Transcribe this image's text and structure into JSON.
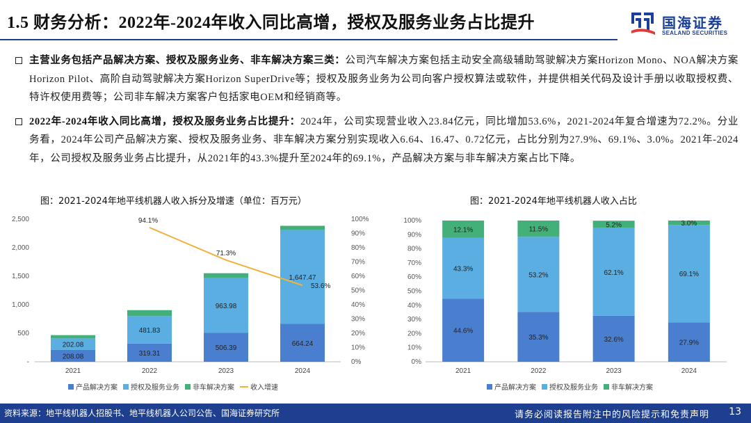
{
  "header": {
    "title": "1.5 财务分析：2022年-2024年收入同比高增，授权及服务业务占比提升",
    "logo_cn": "国海证券",
    "logo_en": "SEALAND SECURITIES"
  },
  "bullets": [
    {
      "lead": "主营业务包括产品解决方案、授权及服务业务、非车解决方案三类：",
      "body": "公司汽车解决方案包括主动安全高级辅助驾驶解决方案Horizon Mono、NOA解决方案Horizon Pilot、高阶自动驾驶解决方案Horizon SuperDrive等；授权及服务业务为公司向客户授权算法或软件，并提供相关代码及设计手册以收取授权费、特许权使用费等；公司非车解决方案客户包括家电OEM和经销商等。"
    },
    {
      "lead": "2022年-2024年收入同比高增，授权及服务业务占比提升：",
      "body": "2024年，公司实现营业收入23.84亿元，同比增加53.6%，2021-2024年复合增速为72.2%。分业务看，2024年公司产品解决方案、授权及服务业务、非车解决方案分别实现收入6.64、16.47、0.72亿元，占比分别为27.9%、69.1%、3.0%。2021年-2024年，公司授权及服务业务占比提升，从2021年的43.3%提升至2024年的69.1%，产品解决方案与非车解决方案占比下降。"
    }
  ],
  "chart_left_title": "图：2021-2024年地平线机器人收入拆分及增速（单位：百万元）",
  "chart_right_title": "图：2021-2024年地平线机器人收入占比",
  "colors": {
    "product": "#4a7fd0",
    "license": "#5aaee2",
    "noncar": "#43b07a",
    "growth": "#f0b23a",
    "brand": "#1e3f8f"
  },
  "chart_data": [
    {
      "type": "bar",
      "stacked": true,
      "categories": [
        "2021",
        "2022",
        "2023",
        "2024"
      ],
      "series": [
        {
          "name": "产品解决方案",
          "values": [
            208.08,
            319.31,
            506.39,
            664.24
          ],
          "labels": [
            "208.08",
            "319.31",
            "506.39",
            "664.24"
          ]
        },
        {
          "name": "授权及服务业务",
          "values": [
            202.08,
            481.83,
            963.98,
            1647.47
          ],
          "labels": [
            "202.08",
            "481.83",
            "963.98",
            "1,647.47"
          ]
        },
        {
          "name": "非车解决方案",
          "values": [
            57,
            104,
            82,
            72
          ],
          "labels": [
            "",
            "",
            "",
            ""
          ]
        }
      ],
      "line": {
        "name": "收入增速",
        "axis": "right",
        "values": [
          null,
          94.1,
          71.3,
          53.6
        ],
        "labels": [
          "",
          "94.1%",
          "71.3%",
          "53.6%"
        ]
      },
      "ylim": [
        0,
        2500
      ],
      "yticks": [
        "-",
        "500",
        "1,000",
        "1,500",
        "2,000",
        "2,500"
      ],
      "y2lim": [
        0,
        100
      ],
      "y2ticks": [
        "0%",
        "10%",
        "20%",
        "30%",
        "40%",
        "50%",
        "60%",
        "70%",
        "80%",
        "90%",
        "100%"
      ],
      "legend_position": "bottom",
      "legend": [
        "产品解决方案",
        "授权及服务业务",
        "非车解决方案",
        "收入增速"
      ]
    },
    {
      "type": "bar",
      "stacked": true,
      "percent": true,
      "categories": [
        "2021",
        "2022",
        "2023",
        "2024"
      ],
      "series": [
        {
          "name": "产品解决方案",
          "values": [
            44.6,
            35.3,
            32.6,
            27.9
          ],
          "labels": [
            "44.6%",
            "35.3%",
            "32.6%",
            "27.9%"
          ]
        },
        {
          "name": "授权及服务业务",
          "values": [
            43.3,
            53.2,
            62.1,
            69.1
          ],
          "labels": [
            "43.3%",
            "53.2%",
            "62.1%",
            "69.1%"
          ]
        },
        {
          "name": "非车解决方案",
          "values": [
            12.1,
            11.5,
            5.2,
            3.0
          ],
          "labels": [
            "12.1%",
            "11.5%",
            "5.2%",
            "3.0%"
          ]
        }
      ],
      "ylim": [
        0,
        100
      ],
      "yticks": [
        "0%",
        "10%",
        "20%",
        "30%",
        "40%",
        "50%",
        "60%",
        "70%",
        "80%",
        "90%",
        "100%"
      ],
      "legend_position": "bottom",
      "legend": [
        "产品解决方案",
        "授权及服务业务",
        "非车解决方案"
      ]
    }
  ],
  "footer": {
    "source": "资料来源：地平线机器人招股书、地平线机器人公司公告、国海证券研究所",
    "disclaimer": "请务必阅读报告附注中的风险提示和免责声明",
    "page": "13"
  }
}
